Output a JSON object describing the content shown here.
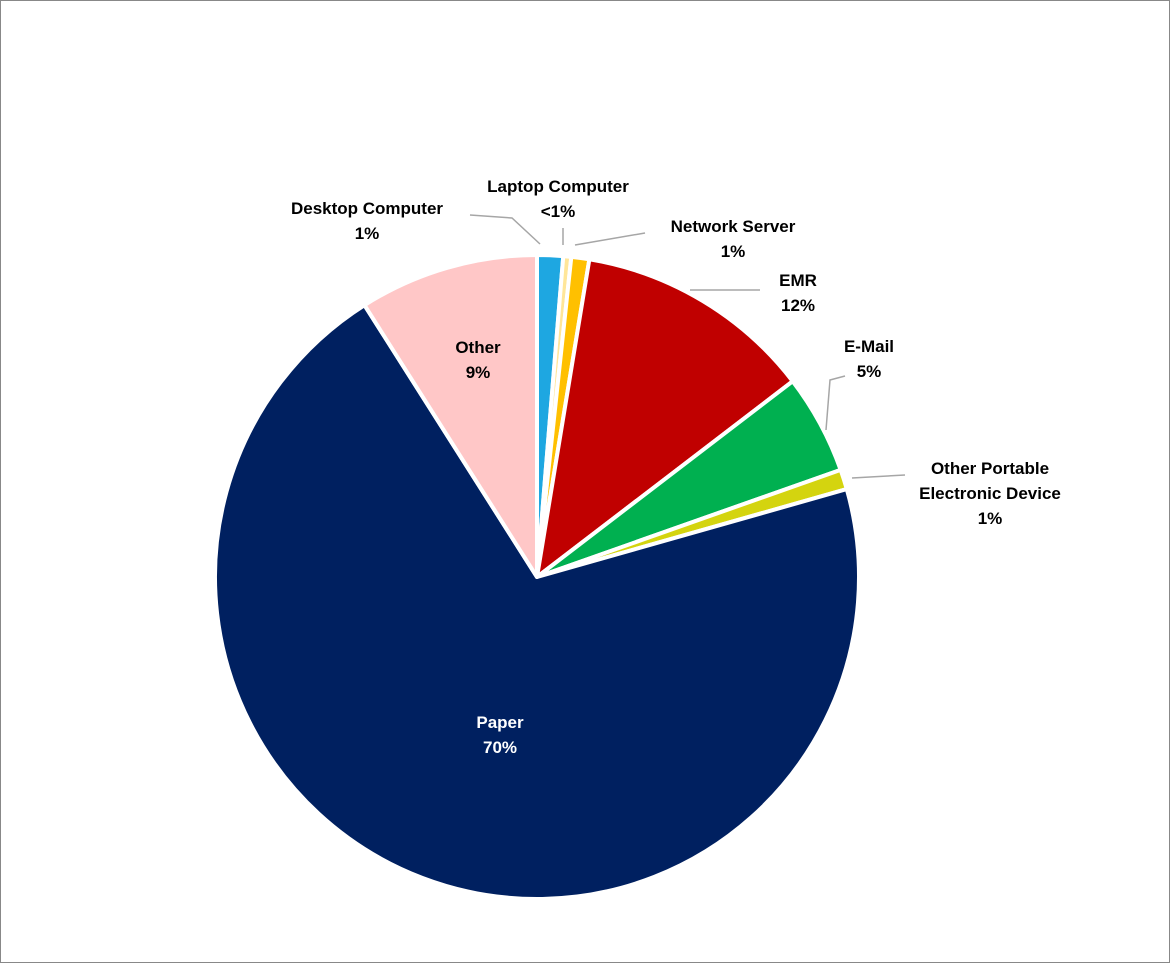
{
  "chart_data": {
    "type": "pie",
    "categories": [
      "Desktop Computer",
      "Laptop Computer",
      "Network Server",
      "EMR",
      "E-Mail",
      "Other Portable Electronic Device",
      "Paper",
      "Other"
    ],
    "values": [
      1.3,
      0.4,
      0.9,
      12,
      5,
      1,
      70.4,
      9
    ],
    "value_labels": [
      "1%",
      "<1%",
      "1%",
      "12%",
      "5%",
      "1%",
      "70%",
      "9%"
    ],
    "colors": [
      "#1ea7e1",
      "#ffe699",
      "#ffc000",
      "#c00000",
      "#00b050",
      "#d4d40f",
      "#002060",
      "#ffc7c7"
    ]
  }
}
